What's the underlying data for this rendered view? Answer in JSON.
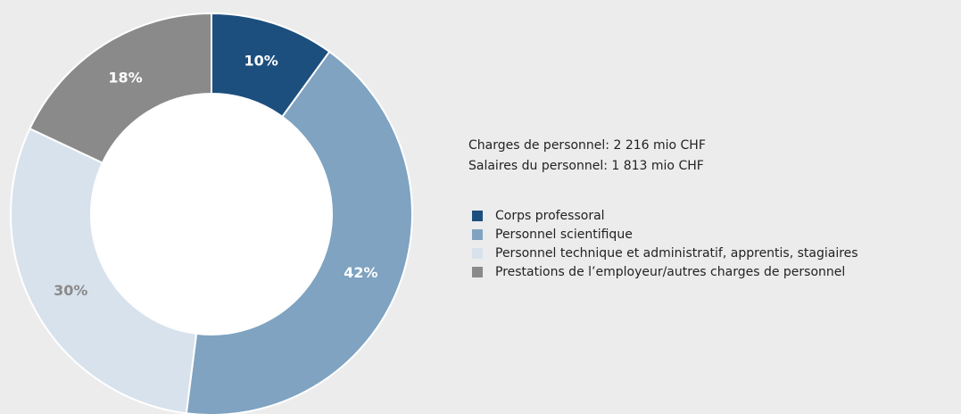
{
  "chart_data": {
    "type": "pie",
    "categories": [
      "Corps professoral",
      "Personnel scientifique",
      "Personnel technique et administratif, apprentis, stagiaires",
      "Prestations de l’employeur/autres charges de personnel"
    ],
    "values": [
      10,
      42,
      30,
      18
    ],
    "value_labels": [
      "10%",
      "42%",
      "30%",
      "18%"
    ],
    "colors": [
      "#1c4f7e",
      "#7fa3c1",
      "#d8e2ec",
      "#8a8a8a"
    ],
    "label_colors": [
      "#ffffff",
      "#ffffff",
      "#8a8a8a",
      "#ffffff"
    ],
    "annotations": [
      "Charges de personnel: 2 216 mio CHF",
      "Salaires du personnel: 1 813 mio CHF"
    ],
    "donut": true
  }
}
